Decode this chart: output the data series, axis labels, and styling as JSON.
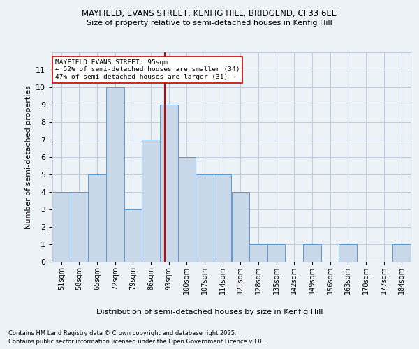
{
  "title1": "MAYFIELD, EVANS STREET, KENFIG HILL, BRIDGEND, CF33 6EE",
  "title2": "Size of property relative to semi-detached houses in Kenfig Hill",
  "xlabel": "Distribution of semi-detached houses by size in Kenfig Hill",
  "ylabel": "Number of semi-detached properties",
  "bins": [
    51,
    58,
    65,
    72,
    79,
    86,
    93,
    100,
    107,
    114,
    121,
    128,
    135,
    142,
    149,
    156,
    163,
    170,
    177,
    184,
    191
  ],
  "counts": [
    4,
    4,
    5,
    10,
    3,
    7,
    9,
    6,
    5,
    5,
    4,
    1,
    1,
    0,
    1,
    0,
    1,
    0,
    0,
    1
  ],
  "bar_color": "#c8d8e8",
  "bar_edgecolor": "#5b9bd5",
  "grid_color": "#c0cfe0",
  "vline_x": 95,
  "vline_color": "#cc0000",
  "annotation_title": "MAYFIELD EVANS STREET: 95sqm",
  "annotation_line1": "← 52% of semi-detached houses are smaller (34)",
  "annotation_line2": "47% of semi-detached houses are larger (31) →",
  "annotation_box_color": "#ffffff",
  "annotation_box_edgecolor": "#cc0000",
  "ylim": [
    0,
    12
  ],
  "yticks": [
    0,
    1,
    2,
    3,
    4,
    5,
    6,
    7,
    8,
    9,
    10,
    11
  ],
  "footer1": "Contains HM Land Registry data © Crown copyright and database right 2025.",
  "footer2": "Contains public sector information licensed under the Open Government Licence v3.0.",
  "bg_color": "#edf2f7"
}
